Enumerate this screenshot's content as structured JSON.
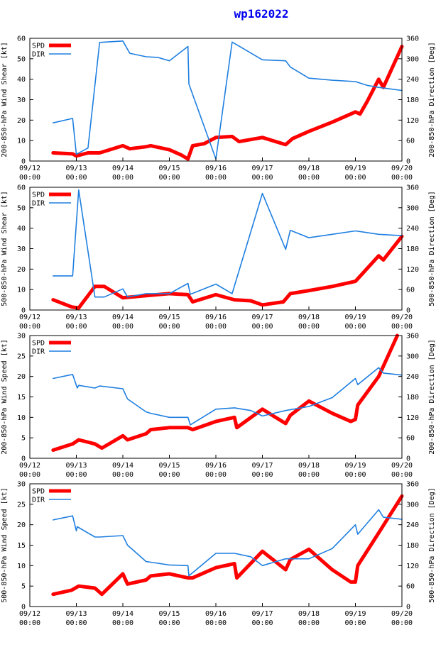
{
  "page_title": "wp162022",
  "colors": {
    "spd": "#ff0000",
    "dir": "#1e7fe0",
    "axis": "#000000",
    "title": "#0000ee"
  },
  "chart_data": [
    {
      "type": "line",
      "ylabel": "200-850-hPa Wind Shear [kt]",
      "y2label": "200-850-hPa Direction [Deg]",
      "ylim": [
        0,
        60
      ],
      "y2lim": [
        0,
        360
      ],
      "yticks": [
        0,
        10,
        20,
        30,
        40,
        50,
        60
      ],
      "y2ticks": [
        0,
        60,
        120,
        180,
        240,
        300,
        360
      ],
      "xlim": [
        0,
        8
      ],
      "xticks": [
        {
          "x": 0,
          "date": "09/12",
          "time": "00:00"
        },
        {
          "x": 1,
          "date": "09/13",
          "time": "00:00"
        },
        {
          "x": 2,
          "date": "09/14",
          "time": "00:00"
        },
        {
          "x": 3,
          "date": "09/15",
          "time": "00:00"
        },
        {
          "x": 4,
          "date": "09/16",
          "time": "00:00"
        },
        {
          "x": 5,
          "date": "09/17",
          "time": "00:00"
        },
        {
          "x": 6,
          "date": "09/18",
          "time": "00:00"
        },
        {
          "x": 7,
          "date": "09/19",
          "time": "00:00"
        },
        {
          "x": 8,
          "date": "09/20",
          "time": "00:00"
        }
      ],
      "series": [
        {
          "name": "SPD",
          "axis": "left",
          "x": [
            0.5,
            0.92,
            1.0,
            1.25,
            1.5,
            2.0,
            2.15,
            2.5,
            2.6,
            3.0,
            3.25,
            3.4,
            3.5,
            3.75,
            4.0,
            4.35,
            4.5,
            5.0,
            5.5,
            5.65,
            6.0,
            6.5,
            7.0,
            7.1,
            7.25,
            7.5,
            7.6,
            8.0
          ],
          "values": [
            4,
            3.5,
            2.5,
            4,
            4,
            7.5,
            6,
            7,
            7.5,
            5.5,
            3,
            1,
            7.5,
            8.5,
            11.5,
            12,
            9.5,
            11.5,
            8,
            11,
            14.5,
            19,
            24,
            23,
            29,
            40,
            36,
            56
          ]
        },
        {
          "name": "DIR",
          "axis": "right",
          "x": [
            0.5,
            0.92,
            1.0,
            1.25,
            1.5,
            2.0,
            2.15,
            2.5,
            2.75,
            3.0,
            3.4,
            3.42,
            4.0,
            4.35,
            4.5,
            5.0,
            5.5,
            5.6,
            6.0,
            6.5,
            7.0,
            7.25,
            7.5,
            8.0
          ],
          "values": [
            112,
            125,
            20,
            38,
            348,
            352,
            316,
            306,
            304,
            294,
            336,
            226,
            6,
            349,
            337,
            297,
            294,
            276,
            243,
            237,
            233,
            222,
            216,
            207
          ]
        }
      ]
    },
    {
      "type": "line",
      "ylabel": "500-850-hPa Wind Shear [kt]",
      "y2label": "500-850-hPa Direction [Deg]",
      "ylim": [
        0,
        60
      ],
      "y2lim": [
        0,
        360
      ],
      "yticks": [
        0,
        10,
        20,
        30,
        40,
        50,
        60
      ],
      "y2ticks": [
        0,
        60,
        120,
        180,
        240,
        300,
        360
      ],
      "xlim": [
        0,
        8
      ],
      "xticks": [
        {
          "x": 0,
          "date": "09/12",
          "time": "00:00"
        },
        {
          "x": 1,
          "date": "09/13",
          "time": "00:00"
        },
        {
          "x": 2,
          "date": "09/14",
          "time": "00:00"
        },
        {
          "x": 3,
          "date": "09/15",
          "time": "00:00"
        },
        {
          "x": 4,
          "date": "09/16",
          "time": "00:00"
        },
        {
          "x": 5,
          "date": "09/17",
          "time": "00:00"
        },
        {
          "x": 6,
          "date": "09/18",
          "time": "00:00"
        },
        {
          "x": 7,
          "date": "09/19",
          "time": "00:00"
        },
        {
          "x": 8,
          "date": "09/20",
          "time": "00:00"
        }
      ],
      "series": [
        {
          "name": "SPD",
          "axis": "left",
          "x": [
            0.5,
            0.9,
            1.05,
            1.4,
            1.6,
            2.0,
            2.5,
            3.0,
            3.4,
            3.5,
            4.0,
            4.4,
            4.75,
            5.0,
            5.45,
            5.6,
            6.0,
            6.5,
            7.0,
            7.5,
            7.6,
            8.0
          ],
          "values": [
            5,
            1.5,
            1,
            11.5,
            11.5,
            6,
            7,
            8,
            7.5,
            4,
            7.5,
            5,
            4.5,
            2.5,
            4,
            8,
            9.5,
            11.5,
            14,
            26.5,
            24.5,
            36
          ]
        },
        {
          "name": "DIR",
          "axis": "right",
          "x": [
            0.5,
            0.92,
            1.05,
            1.4,
            1.6,
            2.0,
            2.1,
            2.5,
            3.0,
            3.4,
            3.45,
            4.0,
            4.35,
            5.0,
            5.5,
            5.6,
            6.0,
            6.5,
            7.0,
            7.5,
            8.0
          ],
          "values": [
            100,
            100,
            352,
            38,
            38,
            62,
            38,
            48,
            48,
            78,
            46,
            76,
            48,
            342,
            178,
            234,
            212,
            222,
            232,
            222,
            218
          ]
        }
      ]
    },
    {
      "type": "line",
      "ylabel": "200-850-hPa Wind Speed [kt]",
      "y2label": "200-850-hPa Direction [Deg]",
      "ylim": [
        0,
        30
      ],
      "y2lim": [
        0,
        360
      ],
      "yticks": [
        0,
        5,
        10,
        15,
        20,
        25,
        30
      ],
      "y2ticks": [
        0,
        60,
        120,
        180,
        240,
        300,
        360
      ],
      "xlim": [
        0,
        8
      ],
      "xticks": [
        {
          "x": 0,
          "date": "09/12",
          "time": "00:00"
        },
        {
          "x": 1,
          "date": "09/13",
          "time": "00:00"
        },
        {
          "x": 2,
          "date": "09/14",
          "time": "00:00"
        },
        {
          "x": 3,
          "date": "09/15",
          "time": "00:00"
        },
        {
          "x": 4,
          "date": "09/16",
          "time": "00:00"
        },
        {
          "x": 5,
          "date": "09/17",
          "time": "00:00"
        },
        {
          "x": 6,
          "date": "09/18",
          "time": "00:00"
        },
        {
          "x": 7,
          "date": "09/19",
          "time": "00:00"
        },
        {
          "x": 8,
          "date": "09/20",
          "time": "00:00"
        }
      ],
      "series": [
        {
          "name": "SPD",
          "axis": "left",
          "x": [
            0.5,
            0.92,
            1.05,
            1.4,
            1.55,
            2.0,
            2.1,
            2.5,
            2.6,
            3.0,
            3.4,
            3.5,
            4.0,
            4.4,
            4.45,
            5.0,
            5.5,
            5.6,
            6.0,
            6.5,
            6.9,
            7.0,
            7.05,
            7.5,
            7.9
          ],
          "values": [
            2,
            3.5,
            4.5,
            3.5,
            2.5,
            5.5,
            4.5,
            6,
            7,
            7.5,
            7.5,
            7,
            9,
            10,
            7.5,
            12,
            8.5,
            10.5,
            14,
            11,
            9,
            9.5,
            13,
            20,
            30
          ]
        },
        {
          "name": "DIR",
          "axis": "right",
          "x": [
            0.5,
            0.92,
            1.02,
            1.05,
            1.4,
            1.5,
            2.0,
            2.1,
            2.5,
            2.6,
            3.0,
            3.4,
            3.45,
            4.0,
            4.4,
            4.75,
            5.0,
            5.5,
            6.0,
            6.5,
            7.0,
            7.05,
            7.5,
            7.6,
            8.0
          ],
          "values": [
            234,
            246,
            206,
            214,
            206,
            212,
            204,
            174,
            136,
            132,
            120,
            120,
            98,
            144,
            148,
            140,
            124,
            140,
            152,
            178,
            234,
            216,
            266,
            250,
            244
          ]
        }
      ]
    },
    {
      "type": "line",
      "ylabel": "500-850-hPa Wind Speed [kt]",
      "y2label": "500-850-hPa Direction [Deg]",
      "ylim": [
        0,
        30
      ],
      "y2lim": [
        0,
        360
      ],
      "yticks": [
        0,
        5,
        10,
        15,
        20,
        25,
        30
      ],
      "y2ticks": [
        0,
        60,
        120,
        180,
        240,
        300,
        360
      ],
      "xlim": [
        0,
        8
      ],
      "xticks": [
        {
          "x": 0,
          "date": "09/12",
          "time": "00:00"
        },
        {
          "x": 1,
          "date": "09/13",
          "time": "00:00"
        },
        {
          "x": 2,
          "date": "09/14",
          "time": "00:00"
        },
        {
          "x": 3,
          "date": "09/15",
          "time": "00:00"
        },
        {
          "x": 4,
          "date": "09/16",
          "time": "00:00"
        },
        {
          "x": 5,
          "date": "09/17",
          "time": "00:00"
        },
        {
          "x": 6,
          "date": "09/18",
          "time": "00:00"
        },
        {
          "x": 7,
          "date": "09/19",
          "time": "00:00"
        },
        {
          "x": 8,
          "date": "09/20",
          "time": "00:00"
        }
      ],
      "series": [
        {
          "name": "SPD",
          "axis": "left",
          "x": [
            0.5,
            0.9,
            1.05,
            1.4,
            1.55,
            2.0,
            2.1,
            2.5,
            2.6,
            3.0,
            3.4,
            3.5,
            4.0,
            4.4,
            4.45,
            5.0,
            5.5,
            5.6,
            6.0,
            6.5,
            6.9,
            7.0,
            7.05,
            7.5,
            8.0
          ],
          "values": [
            3,
            4,
            5,
            4.5,
            3,
            8,
            5.5,
            6.5,
            7.5,
            8,
            7,
            7,
            9.5,
            10.5,
            7,
            13.5,
            9,
            11.5,
            14,
            9,
            6,
            6,
            10,
            18,
            27
          ]
        },
        {
          "name": "DIR",
          "axis": "right",
          "x": [
            0.5,
            0.92,
            1.0,
            1.02,
            1.4,
            1.5,
            2.0,
            2.1,
            2.5,
            2.6,
            3.0,
            3.4,
            3.42,
            4.0,
            4.4,
            4.75,
            5.0,
            5.5,
            6.0,
            6.5,
            7.0,
            7.05,
            7.5,
            7.6,
            8.0
          ],
          "values": [
            254,
            266,
            222,
            234,
            204,
            204,
            208,
            180,
            132,
            130,
            122,
            120,
            90,
            156,
            156,
            146,
            120,
            140,
            140,
            170,
            240,
            212,
            284,
            262,
            256
          ]
        }
      ]
    }
  ]
}
